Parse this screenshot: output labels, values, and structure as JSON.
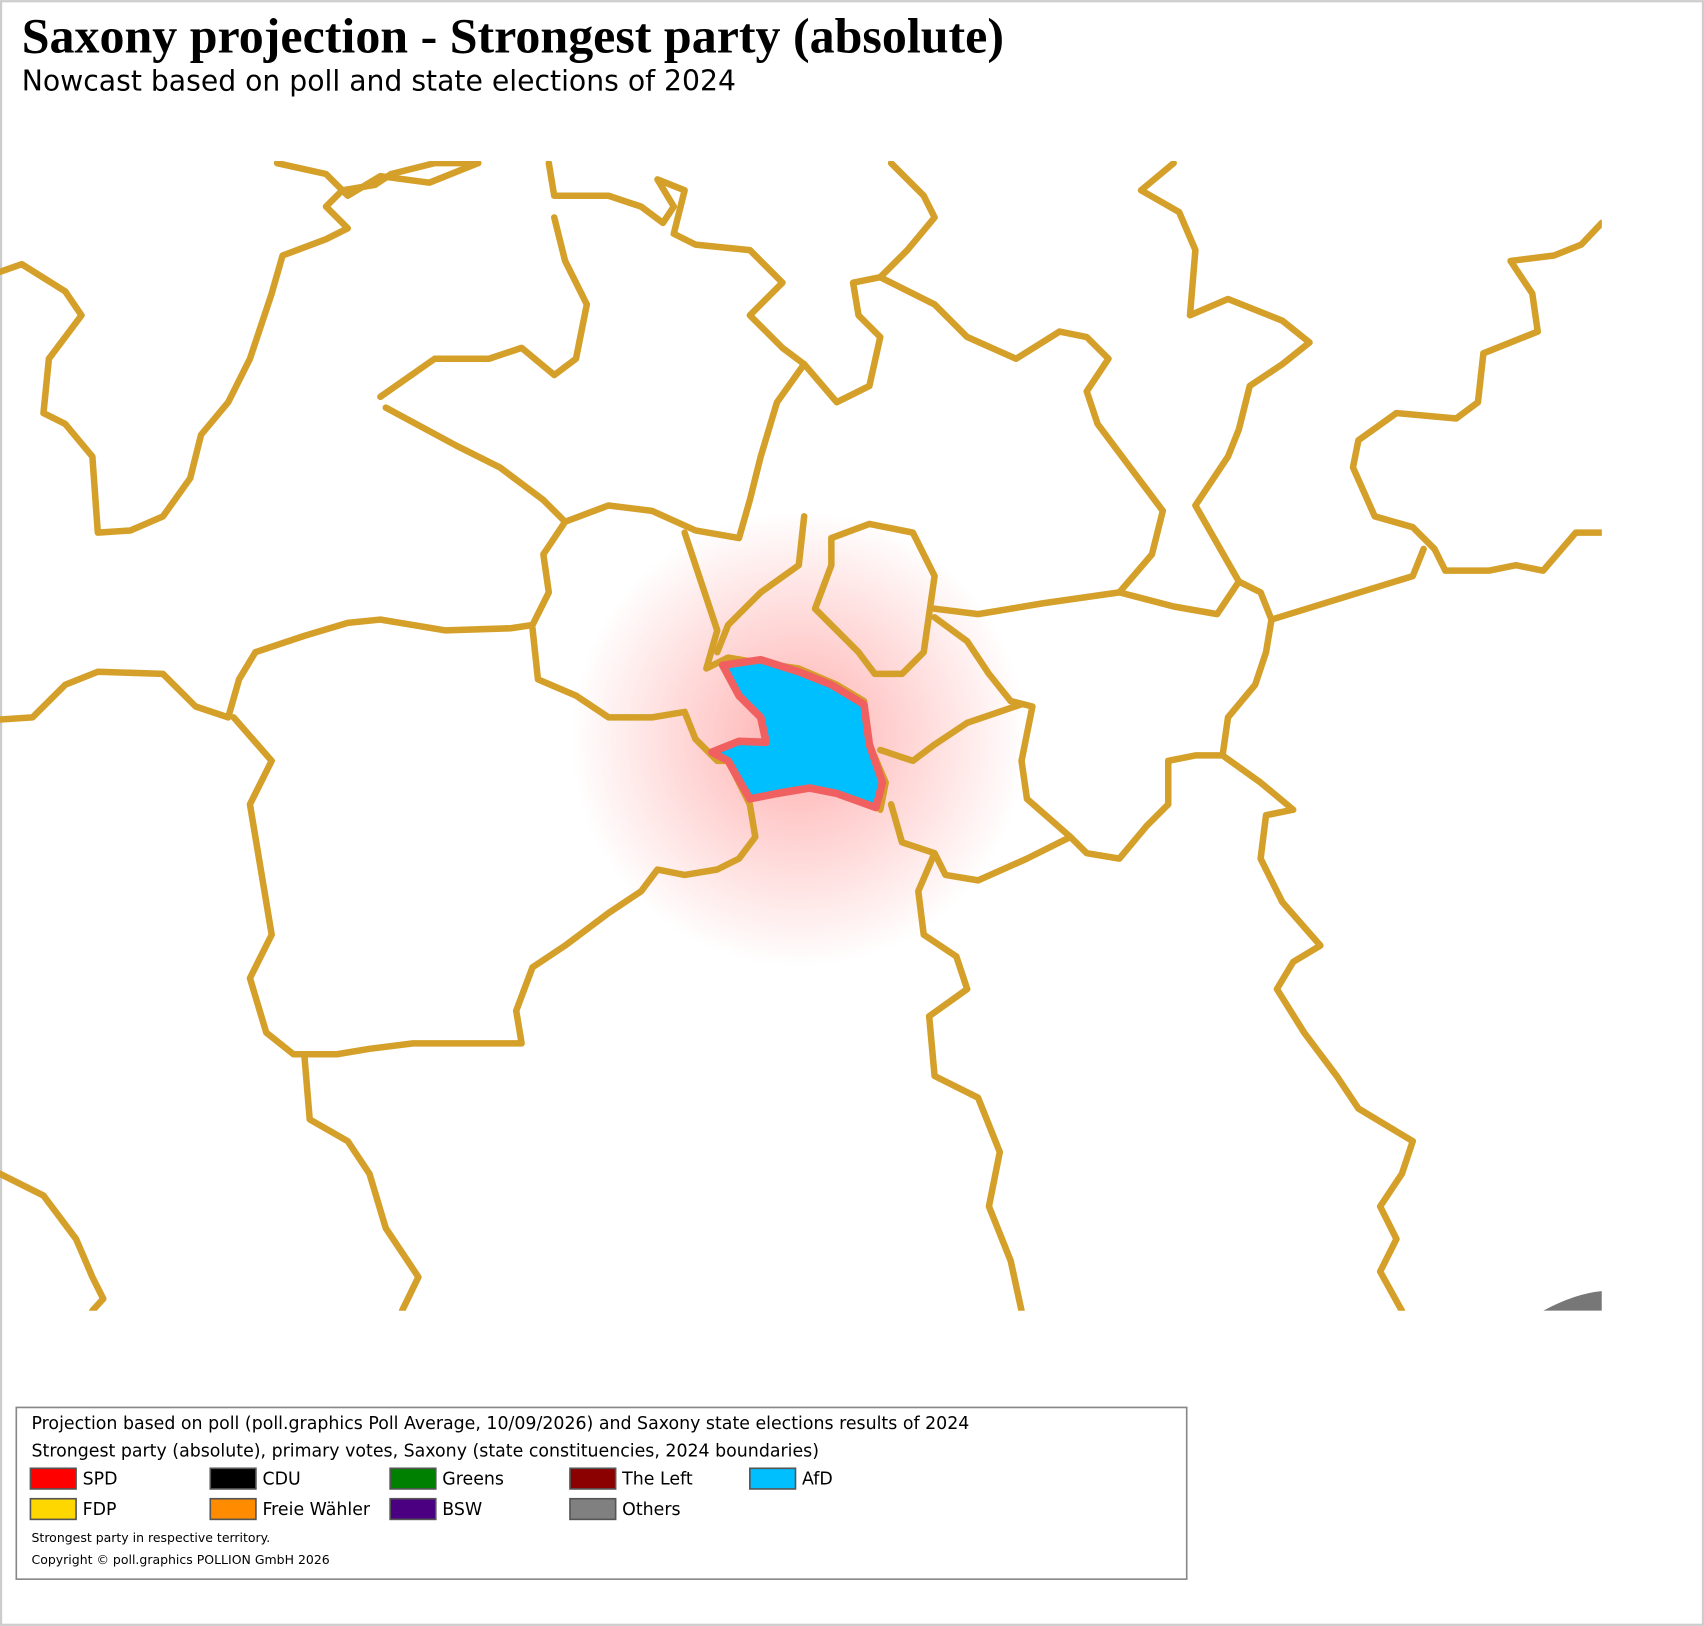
{
  "header": {
    "title": "Saxony projection - Strongest party (absolute)",
    "subtitle": "Nowcast based on poll and state elections of 2024"
  },
  "legend": {
    "description": [
      "Projection based on poll (poll.graphics Poll Average, 10/09/2026) and Saxony state elections results of 2024",
      "Strongest party (absolute), primary votes, Saxony (state constituencies, 2024 boundaries)"
    ],
    "items": [
      {
        "name": "SPD",
        "color": "#ff0000"
      },
      {
        "name": "CDU",
        "color": "#000000"
      },
      {
        "name": "Greens",
        "color": "#008000"
      },
      {
        "name": "The Left",
        "color": "#8b0000"
      },
      {
        "name": "AfD",
        "color": "#00bfff"
      },
      {
        "name": "FDP",
        "color": "#ffd700"
      },
      {
        "name": "Freie Wähler",
        "color": "#ff8c00"
      },
      {
        "name": "BSW",
        "color": "#4b0082"
      },
      {
        "name": "Others",
        "color": "#808080"
      }
    ],
    "notes": [
      "Strongest party in respective territory.",
      "Copyright © poll.graphics POLLION GmbH 2026"
    ]
  }
}
